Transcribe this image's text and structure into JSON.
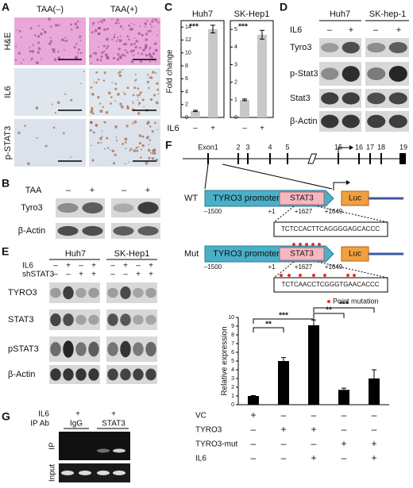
{
  "panels": {
    "A": {
      "label": "A",
      "columns": [
        "TAA(–)",
        "TAA(+)"
      ],
      "rows": [
        "H&E",
        "IL6",
        "p-STAT3"
      ]
    },
    "B": {
      "label": "B",
      "treatment": "TAA",
      "signs": [
        "–",
        "+",
        "–",
        "+"
      ],
      "rows": [
        "Tyro3",
        "β-Actin"
      ]
    },
    "C": {
      "label": "C",
      "y_label": "Fold change",
      "x_label": "IL6",
      "charts": [
        {
          "title": "Huh7",
          "categories": [
            "–",
            "+"
          ],
          "values": [
            1,
            13.7
          ],
          "errors": [
            0.1,
            0.6
          ],
          "ylim": [
            0,
            15
          ],
          "yticks": [
            0,
            2,
            4,
            6,
            8,
            10,
            12,
            14
          ],
          "annotation": "***"
        },
        {
          "title": "SK-Hep1",
          "categories": [
            "–",
            "+"
          ],
          "values": [
            1,
            4.7
          ],
          "errors": [
            0.05,
            0.25
          ],
          "ylim": [
            0,
            5.5
          ],
          "yticks": [
            0,
            1,
            2,
            3,
            4,
            5
          ],
          "annotation": "***"
        }
      ]
    },
    "D": {
      "label": "D",
      "groups": [
        "Huh7",
        "SK-hep-1"
      ],
      "treatment": "IL6",
      "signs": [
        "–",
        "+",
        "–",
        "+"
      ],
      "rows": [
        "Tyro3",
        "p-Stat3",
        "Stat3",
        "β-Actin"
      ]
    },
    "E": {
      "label": "E",
      "groups": [
        "Huh7",
        "SK-Hep1"
      ],
      "treatments": [
        {
          "name": "IL6",
          "signs": [
            "–",
            "+",
            "–",
            "+",
            "–",
            "+",
            "–",
            "+"
          ]
        },
        {
          "name": "shSTAT3",
          "signs": [
            "–",
            "–",
            "+",
            "+",
            "–",
            "–",
            "+",
            "+"
          ]
        }
      ],
      "rows": [
        "TYRO3",
        "STAT3",
        "pSTAT3",
        "β-Actin"
      ]
    },
    "F": {
      "label": "F",
      "exons": [
        "Exon1",
        "2",
        "3",
        "4",
        "5",
        "15",
        "16",
        "17",
        "18",
        "19"
      ],
      "constructs": [
        {
          "name": "WT",
          "promoter": "TYRO3 promoter",
          "site": "STAT3",
          "reporter": "Luc",
          "positions": [
            "–1500",
            "+1",
            "+1627",
            "+1649"
          ],
          "sequence": "TCTCCACTTCAGGGGAGCACCC"
        },
        {
          "name": "Mut",
          "promoter": "TYRO3 promoter",
          "site": "STAT3",
          "reporter": "Luc",
          "positions": [
            "–1500",
            "+1",
            "+1627",
            "+1649"
          ],
          "sequence": "TCTCAACCTCGGGTGAACACCC"
        }
      ],
      "legend": "Point mutation",
      "chart": {
        "y_label": "Relative expression",
        "values": [
          1,
          5.0,
          9.1,
          1.7,
          3.0
        ],
        "errors": [
          0.05,
          0.4,
          0.6,
          0.2,
          1.0
        ],
        "ylim": [
          0,
          10
        ],
        "yticks": [
          0,
          1,
          2,
          3,
          4,
          5,
          6,
          7,
          8,
          9,
          10
        ],
        "significance": [
          {
            "pair": [
              0,
              1
            ],
            "label": "**"
          },
          {
            "pair": [
              0,
              2
            ],
            "label": "***"
          },
          {
            "pair": [
              2,
              3
            ],
            "label": "**"
          },
          {
            "pair": [
              2,
              4
            ],
            "label": "***"
          }
        ],
        "conditions": [
          {
            "name": "VC",
            "signs": [
              "+",
              "–",
              "–",
              "–",
              "–"
            ]
          },
          {
            "name": "TYRO3",
            "signs": [
              "–",
              "+",
              "+",
              "–",
              "–"
            ]
          },
          {
            "name": "TYRO3-mut",
            "signs": [
              "–",
              "–",
              "–",
              "+",
              "+"
            ]
          },
          {
            "name": "IL6",
            "signs": [
              "–",
              "–",
              "+",
              "–",
              "+"
            ]
          }
        ]
      }
    },
    "G": {
      "label": "G",
      "rows": [
        "IL6",
        "IP Ab"
      ],
      "il6": [
        "+",
        "+"
      ],
      "antibodies": [
        "IgG",
        "STAT3"
      ],
      "gels": [
        "IP",
        "Input"
      ]
    }
  }
}
